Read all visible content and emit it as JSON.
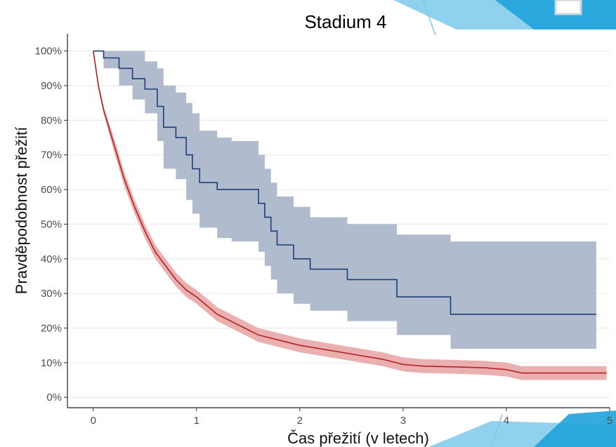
{
  "chart_data": {
    "type": "line",
    "title": "Stadium 4",
    "xlabel": "Čas přežití (v letech)",
    "ylabel": "Pravděpodobnost přežití",
    "xlim": [
      -0.25,
      5.0
    ],
    "ylim": [
      -0.03,
      1.05
    ],
    "grid": "horizontal",
    "x_ticks": [
      {
        "value": 0,
        "label": "0"
      },
      {
        "value": 1,
        "label": "1"
      },
      {
        "value": 2,
        "label": "2"
      },
      {
        "value": 3,
        "label": "3"
      },
      {
        "value": 4,
        "label": "4"
      },
      {
        "value": 5,
        "label": "5"
      }
    ],
    "y_ticks": [
      {
        "value": 0.0,
        "label": "0%"
      },
      {
        "value": 0.1,
        "label": "10%"
      },
      {
        "value": 0.2,
        "label": "20%"
      },
      {
        "value": 0.3,
        "label": "30%"
      },
      {
        "value": 0.4,
        "label": "40%"
      },
      {
        "value": 0.5,
        "label": "50%"
      },
      {
        "value": 0.6,
        "label": "60%"
      },
      {
        "value": 0.7,
        "label": "70%"
      },
      {
        "value": 0.8,
        "label": "80%"
      },
      {
        "value": 0.9,
        "label": "90%"
      },
      {
        "value": 1.0,
        "label": "100%"
      }
    ],
    "series": [
      {
        "color": "#1f3d7a",
        "band_color": "#a9b4c9",
        "step": true,
        "points": [
          [
            0.0,
            1.0,
            1.0,
            1.0
          ],
          [
            0.1,
            0.98,
            0.95,
            1.0
          ],
          [
            0.25,
            0.95,
            0.9,
            1.0
          ],
          [
            0.38,
            0.92,
            0.86,
            1.0
          ],
          [
            0.5,
            0.89,
            0.82,
            0.97
          ],
          [
            0.62,
            0.84,
            0.74,
            0.95
          ],
          [
            0.68,
            0.78,
            0.66,
            0.9
          ],
          [
            0.8,
            0.75,
            0.63,
            0.88
          ],
          [
            0.9,
            0.7,
            0.57,
            0.85
          ],
          [
            0.96,
            0.66,
            0.53,
            0.82
          ],
          [
            1.03,
            0.62,
            0.49,
            0.77
          ],
          [
            1.2,
            0.6,
            0.46,
            0.75
          ],
          [
            1.34,
            0.6,
            0.45,
            0.74
          ],
          [
            1.6,
            0.56,
            0.42,
            0.7
          ],
          [
            1.66,
            0.52,
            0.38,
            0.66
          ],
          [
            1.72,
            0.48,
            0.34,
            0.62
          ],
          [
            1.78,
            0.44,
            0.3,
            0.58
          ],
          [
            1.94,
            0.4,
            0.27,
            0.55
          ],
          [
            2.1,
            0.37,
            0.25,
            0.52
          ],
          [
            2.46,
            0.34,
            0.22,
            0.5
          ],
          [
            2.94,
            0.29,
            0.18,
            0.47
          ],
          [
            3.46,
            0.24,
            0.14,
            0.45
          ],
          [
            4.87,
            0.24,
            0.14,
            0.45
          ]
        ]
      },
      {
        "color": "#b22222",
        "band_color": "#e8a7a7",
        "step": false,
        "points": [
          [
            0.0,
            1.0,
            1.0,
            1.0
          ],
          [
            0.05,
            0.9,
            0.89,
            0.91
          ],
          [
            0.1,
            0.83,
            0.82,
            0.84
          ],
          [
            0.2,
            0.73,
            0.71,
            0.75
          ],
          [
            0.3,
            0.63,
            0.61,
            0.65
          ],
          [
            0.4,
            0.55,
            0.53,
            0.57
          ],
          [
            0.5,
            0.48,
            0.46,
            0.5
          ],
          [
            0.6,
            0.42,
            0.4,
            0.44
          ],
          [
            0.7,
            0.38,
            0.36,
            0.4
          ],
          [
            0.8,
            0.34,
            0.32,
            0.36
          ],
          [
            0.9,
            0.31,
            0.29,
            0.33
          ],
          [
            1.0,
            0.29,
            0.27,
            0.31
          ],
          [
            1.1,
            0.265,
            0.245,
            0.285
          ],
          [
            1.2,
            0.24,
            0.22,
            0.26
          ],
          [
            1.3,
            0.225,
            0.205,
            0.245
          ],
          [
            1.4,
            0.21,
            0.19,
            0.23
          ],
          [
            1.5,
            0.195,
            0.175,
            0.215
          ],
          [
            1.6,
            0.18,
            0.16,
            0.2
          ],
          [
            1.8,
            0.165,
            0.145,
            0.185
          ],
          [
            2.0,
            0.15,
            0.13,
            0.17
          ],
          [
            2.2,
            0.14,
            0.12,
            0.16
          ],
          [
            2.4,
            0.13,
            0.11,
            0.15
          ],
          [
            2.6,
            0.12,
            0.1,
            0.14
          ],
          [
            2.8,
            0.11,
            0.09,
            0.13
          ],
          [
            3.0,
            0.095,
            0.075,
            0.115
          ],
          [
            3.2,
            0.09,
            0.07,
            0.11
          ],
          [
            3.5,
            0.088,
            0.068,
            0.108
          ],
          [
            3.8,
            0.085,
            0.065,
            0.105
          ],
          [
            4.0,
            0.08,
            0.06,
            0.1
          ],
          [
            4.15,
            0.07,
            0.05,
            0.09
          ],
          [
            4.5,
            0.07,
            0.05,
            0.09
          ],
          [
            4.97,
            0.07,
            0.05,
            0.09
          ]
        ]
      }
    ]
  }
}
